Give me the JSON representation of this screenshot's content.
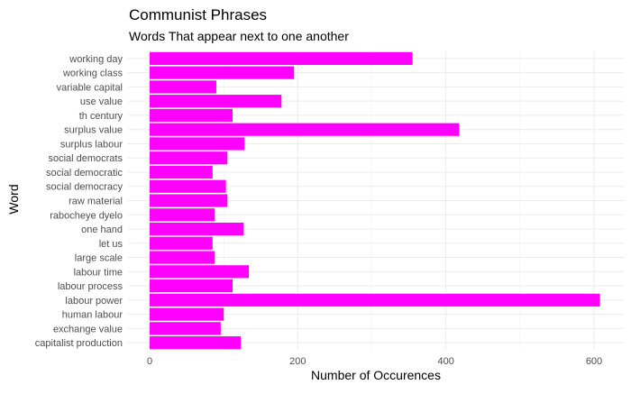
{
  "chart_data": {
    "type": "bar",
    "orientation": "horizontal",
    "title": "Communist Phrases",
    "subtitle": "Words That appear next to one another",
    "xlabel": "Number of Occurences",
    "ylabel": "Word",
    "xlim": [
      0,
      620
    ],
    "x_ticks": [
      0,
      200,
      400,
      600
    ],
    "grid": true,
    "bar_color": "#ff00ff",
    "categories": [
      "working day",
      "working class",
      "variable capital",
      "use value",
      "th century",
      "surplus value",
      "surplus labour",
      "social democrats",
      "social democratic",
      "social democracy",
      "raw material",
      "rabocheye dyelo",
      "one hand",
      "let us",
      "large scale",
      "labour time",
      "labour process",
      "labour power",
      "human labour",
      "exchange value",
      "capitalist production"
    ],
    "values": [
      355,
      195,
      90,
      178,
      112,
      418,
      128,
      105,
      85,
      103,
      105,
      88,
      127,
      85,
      88,
      134,
      112,
      608,
      100,
      96,
      123
    ]
  }
}
